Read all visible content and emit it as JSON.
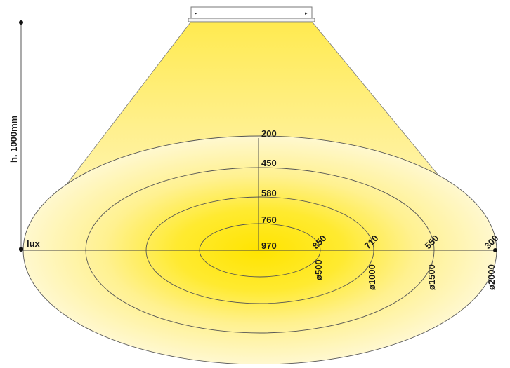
{
  "diagram": {
    "height_label": "h. 1000mm",
    "unit_label": "lux",
    "center_lux_labels": [
      "200",
      "450",
      "580",
      "760",
      "970"
    ],
    "diameter_labels": [
      "ø500",
      "ø1000",
      "ø1500",
      "ø2000"
    ],
    "edge_lux_labels": [
      "850",
      "710",
      "550",
      "300"
    ],
    "colors": {
      "light_core": "#ffe400",
      "light_mid": "#ffef80",
      "light_edge": "#fff7c8",
      "lines": "#555555"
    }
  }
}
